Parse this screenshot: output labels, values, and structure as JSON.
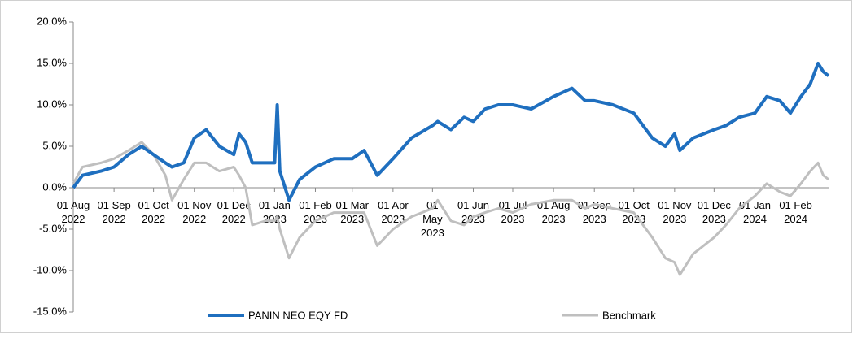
{
  "chart_data": {
    "type": "line",
    "x": [
      "2022-08-01",
      "2022-08-08",
      "2022-08-22",
      "2022-09-01",
      "2022-09-12",
      "2022-09-22",
      "2022-10-01",
      "2022-10-10",
      "2022-10-15",
      "2022-10-24",
      "2022-11-01",
      "2022-11-10",
      "2022-11-20",
      "2022-12-01",
      "2022-12-05",
      "2022-12-10",
      "2022-12-15",
      "2022-12-25",
      "2023-01-01",
      "2023-01-03",
      "2023-01-05",
      "2023-01-12",
      "2023-01-20",
      "2023-02-01",
      "2023-02-15",
      "2023-03-01",
      "2023-03-10",
      "2023-03-20",
      "2023-04-01",
      "2023-04-15",
      "2023-05-01",
      "2023-05-05",
      "2023-05-15",
      "2023-05-25",
      "2023-06-01",
      "2023-06-10",
      "2023-06-20",
      "2023-07-01",
      "2023-07-15",
      "2023-08-01",
      "2023-08-15",
      "2023-08-25",
      "2023-09-01",
      "2023-09-15",
      "2023-10-01",
      "2023-10-15",
      "2023-10-25",
      "2023-11-01",
      "2023-11-05",
      "2023-11-15",
      "2023-12-01",
      "2023-12-10",
      "2023-12-20",
      "2024-01-01",
      "2024-01-10",
      "2024-01-20",
      "2024-01-28",
      "2024-02-05",
      "2024-02-12",
      "2024-02-18",
      "2024-02-22",
      "2024-02-26"
    ],
    "series": [
      {
        "name": "PANIN NEO EQY FD",
        "color": "#1f6fbf",
        "width": 4,
        "values": [
          0,
          1.5,
          2,
          2.5,
          4,
          5,
          4,
          3,
          2.5,
          3,
          6,
          7,
          5,
          4,
          6.5,
          5.5,
          3,
          3,
          3,
          10,
          2,
          -1.5,
          1,
          2.5,
          3.5,
          3.5,
          4.5,
          1.5,
          3.5,
          6,
          7.5,
          8,
          7,
          8.5,
          8,
          9.5,
          10,
          10,
          9.5,
          11,
          12,
          10.5,
          10.5,
          10,
          9,
          6,
          5,
          6.5,
          4.5,
          6,
          7,
          7.5,
          8.5,
          9,
          11,
          10.5,
          9,
          11,
          12.5,
          15,
          14,
          13.5
        ]
      },
      {
        "name": "Benchmark",
        "color": "#bfbfbf",
        "width": 3,
        "values": [
          0.5,
          2.5,
          3,
          3.5,
          4.5,
          5.5,
          4,
          1.5,
          -1.5,
          1,
          3,
          3,
          2,
          2.5,
          1.5,
          0,
          -4.5,
          -4,
          -4,
          -3.5,
          -5,
          -8.5,
          -6,
          -4,
          -3,
          -3,
          -3,
          -7,
          -5,
          -3.5,
          -2.5,
          -1.5,
          -4,
          -4.5,
          -3.5,
          -3,
          -2.5,
          -3,
          -2,
          -1.5,
          -1.5,
          -2.5,
          -2,
          -2.5,
          -3,
          -6,
          -8.5,
          -9,
          -10.5,
          -8,
          -6,
          -4.5,
          -2.5,
          -1,
          0.5,
          -0.5,
          -1,
          0.5,
          2,
          3,
          1.5,
          1
        ]
      }
    ],
    "xlim": [
      "2022-08-01",
      "2024-02-26"
    ],
    "xticks": [
      {
        "value": "2022-08-01",
        "label": "01 Aug 2022"
      },
      {
        "value": "2022-09-01",
        "label": "01 Sep 2022"
      },
      {
        "value": "2022-10-01",
        "label": "01 Oct 2022"
      },
      {
        "value": "2022-11-01",
        "label": "01 Nov 2022"
      },
      {
        "value": "2022-12-01",
        "label": "01 Dec 2022"
      },
      {
        "value": "2023-01-01",
        "label": "01 Jan 2023"
      },
      {
        "value": "2023-02-01",
        "label": "01 Feb 2023"
      },
      {
        "value": "2023-03-01",
        "label": "01 Mar 2023"
      },
      {
        "value": "2023-04-01",
        "label": "01 Apr 2023"
      },
      {
        "value": "2023-05-01",
        "label": "01 May 2023"
      },
      {
        "value": "2023-06-01",
        "label": "01 Jun 2023"
      },
      {
        "value": "2023-07-01",
        "label": "01 Jul 2023"
      },
      {
        "value": "2023-08-01",
        "label": "01 Aug 2023"
      },
      {
        "value": "2023-09-01",
        "label": "01 Sep 2023"
      },
      {
        "value": "2023-10-01",
        "label": "01 Oct 2023"
      },
      {
        "value": "2023-11-01",
        "label": "01 Nov 2023"
      },
      {
        "value": "2023-12-01",
        "label": "01 Dec 2023"
      },
      {
        "value": "2024-01-01",
        "label": "01 Jan 2024"
      },
      {
        "value": "2024-02-01",
        "label": "01 Feb 2024"
      }
    ],
    "ylim": [
      -15,
      20
    ],
    "yticks": [
      {
        "value": -15,
        "label": "-15.0%"
      },
      {
        "value": -10,
        "label": "-10.0%"
      },
      {
        "value": -5,
        "label": "-5.0%"
      },
      {
        "value": 0,
        "label": "0.0%"
      },
      {
        "value": 5,
        "label": "5.0%"
      },
      {
        "value": 10,
        "label": "10.0%"
      },
      {
        "value": 15,
        "label": "15.0%"
      },
      {
        "value": 20,
        "label": "20.0%"
      }
    ],
    "legend": "bottom"
  }
}
